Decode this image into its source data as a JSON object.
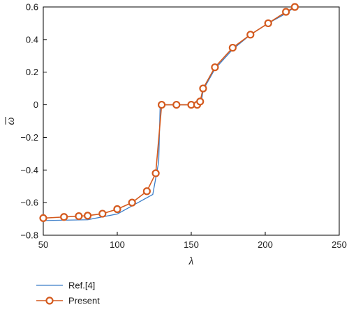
{
  "chart_data": {
    "type": "line",
    "xlabel": "λ",
    "ylabel": "ω",
    "xlim": [
      50,
      250
    ],
    "ylim": [
      -0.8,
      0.6
    ],
    "xticks": [
      50,
      100,
      150,
      200,
      250
    ],
    "yticks": [
      -0.8,
      -0.6,
      -0.4,
      -0.2,
      0,
      0.2,
      0.4,
      0.6
    ],
    "xtick_labels": [
      "50",
      "100",
      "150",
      "200",
      "250"
    ],
    "ytick_labels": [
      "−0.8",
      "−0.6",
      "−0.4",
      "−0.2",
      "0",
      "0.2",
      "0.4",
      "0.6"
    ],
    "grid": false,
    "legend_position": "below-left",
    "series": [
      {
        "name": "Ref.[4]",
        "color": "#3a7dc8",
        "marker": "none",
        "x": [
          50,
          80,
          100,
          110,
          124,
          128,
          129,
          130,
          150,
          155,
          157,
          158,
          166,
          178,
          190,
          202,
          214,
          220
        ],
        "y": [
          -0.71,
          -0.705,
          -0.67,
          -0.62,
          -0.55,
          -0.35,
          0,
          0,
          0,
          0,
          0.03,
          0.09,
          0.22,
          0.34,
          0.43,
          0.5,
          0.56,
          0.6
        ]
      },
      {
        "name": "Present",
        "color": "#d45a1e",
        "marker": "circle",
        "x": [
          50,
          64,
          74,
          80,
          90,
          100,
          110,
          120,
          126,
          130,
          140,
          150,
          154,
          156,
          158,
          166,
          178,
          190,
          202,
          214,
          220
        ],
        "y": [
          -0.695,
          -0.688,
          -0.683,
          -0.68,
          -0.668,
          -0.64,
          -0.6,
          -0.53,
          -0.42,
          0,
          0,
          0,
          0,
          0.02,
          0.1,
          0.23,
          0.35,
          0.43,
          0.5,
          0.57,
          0.6
        ]
      }
    ]
  }
}
